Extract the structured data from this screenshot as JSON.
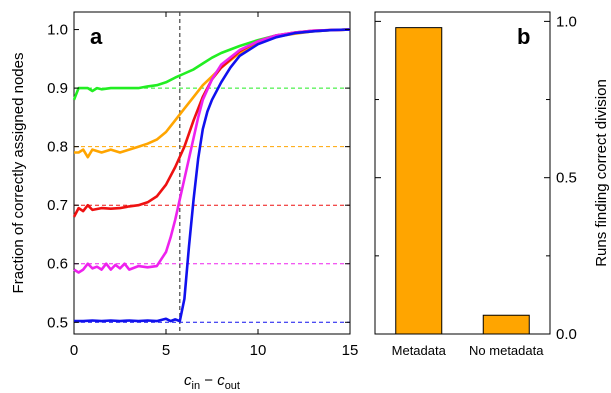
{
  "chart_data": [
    {
      "panel_label": "a",
      "type": "line",
      "xlabel": {
        "main": "c",
        "sub1": "in",
        "minus": " − ",
        "main2": "c",
        "sub2": "out"
      },
      "ylabel": "Fraction of correctly assigned nodes",
      "xlim": [
        0,
        15
      ],
      "ylim": [
        0.48,
        1.03
      ],
      "xticks": [
        "0",
        "5",
        "10",
        "15"
      ],
      "yticks": [
        "0.5",
        "0.6",
        "0.7",
        "0.8",
        "0.9",
        "1.0"
      ],
      "vertical_line_x": 5.75,
      "series": [
        {
          "color": "#22ee22",
          "baseline": 0.9,
          "x": [
            0,
            0.25,
            0.5,
            0.75,
            1,
            1.25,
            1.5,
            2,
            2.5,
            3,
            3.5,
            4,
            4.5,
            5,
            5.5,
            6,
            6.5,
            7,
            7.5,
            8,
            9,
            10,
            11,
            12,
            13,
            14,
            15
          ],
          "y": [
            0.88,
            0.9,
            0.9,
            0.9,
            0.895,
            0.9,
            0.898,
            0.9,
            0.9,
            0.9,
            0.9,
            0.903,
            0.905,
            0.91,
            0.918,
            0.925,
            0.932,
            0.942,
            0.952,
            0.96,
            0.972,
            0.982,
            0.99,
            0.994,
            0.997,
            0.999,
            1.0
          ]
        },
        {
          "color": "#ffa500",
          "baseline": 0.8,
          "x": [
            0,
            0.25,
            0.5,
            0.75,
            1,
            1.5,
            2,
            2.5,
            3,
            3.5,
            4,
            4.5,
            5,
            5.5,
            6,
            6.5,
            7,
            7.5,
            8,
            9,
            10,
            11,
            12,
            13,
            14,
            15
          ],
          "y": [
            0.79,
            0.79,
            0.795,
            0.782,
            0.795,
            0.79,
            0.795,
            0.79,
            0.795,
            0.8,
            0.805,
            0.812,
            0.825,
            0.845,
            0.865,
            0.885,
            0.905,
            0.92,
            0.935,
            0.96,
            0.976,
            0.988,
            0.993,
            0.997,
            0.999,
            1.0
          ]
        },
        {
          "color": "#ee1111",
          "baseline": 0.7,
          "x": [
            0,
            0.25,
            0.5,
            0.75,
            1,
            1.5,
            2,
            2.5,
            3,
            3.5,
            4,
            4.5,
            5,
            5.5,
            6,
            6.5,
            7,
            7.5,
            8,
            9,
            10,
            11,
            12,
            13,
            14,
            15
          ],
          "y": [
            0.68,
            0.695,
            0.69,
            0.7,
            0.692,
            0.695,
            0.694,
            0.695,
            0.698,
            0.7,
            0.705,
            0.715,
            0.735,
            0.765,
            0.8,
            0.845,
            0.885,
            0.915,
            0.935,
            0.963,
            0.98,
            0.99,
            0.995,
            0.998,
            0.999,
            1.0
          ]
        },
        {
          "color": "#ee22ee",
          "baseline": 0.6,
          "x": [
            0,
            0.25,
            0.5,
            0.75,
            1,
            1.25,
            1.5,
            1.75,
            2,
            2.25,
            2.5,
            2.75,
            3,
            3.5,
            4,
            4.5,
            5,
            5.25,
            5.5,
            5.75,
            6,
            6.25,
            6.5,
            6.75,
            7,
            7.5,
            8,
            9,
            10,
            11,
            12,
            13,
            14,
            15
          ],
          "y": [
            0.59,
            0.585,
            0.59,
            0.6,
            0.592,
            0.595,
            0.59,
            0.6,
            0.59,
            0.598,
            0.592,
            0.6,
            0.59,
            0.596,
            0.594,
            0.596,
            0.62,
            0.645,
            0.675,
            0.71,
            0.745,
            0.78,
            0.815,
            0.85,
            0.88,
            0.915,
            0.94,
            0.965,
            0.98,
            0.99,
            0.995,
            0.998,
            0.999,
            1.0
          ]
        },
        {
          "color": "#1111ee",
          "baseline": 0.5,
          "x": [
            0,
            0.5,
            1,
            1.5,
            2,
            2.5,
            3,
            3.5,
            4,
            4.5,
            5,
            5.25,
            5.5,
            5.75,
            6,
            6.25,
            6.5,
            6.75,
            7,
            7.25,
            7.5,
            8,
            8.5,
            9,
            10,
            11,
            12,
            13,
            14,
            15
          ],
          "y": [
            0.502,
            0.502,
            0.503,
            0.502,
            0.503,
            0.502,
            0.503,
            0.502,
            0.503,
            0.502,
            0.506,
            0.502,
            0.505,
            0.502,
            0.54,
            0.63,
            0.71,
            0.78,
            0.83,
            0.86,
            0.88,
            0.91,
            0.935,
            0.955,
            0.975,
            0.987,
            0.994,
            0.997,
            0.999,
            1.0
          ]
        }
      ]
    },
    {
      "panel_label": "b",
      "type": "bar",
      "categories": [
        "Metadata",
        "No metadata"
      ],
      "values": [
        0.98,
        0.06
      ],
      "bar_color": "#ffa500",
      "ylabel": "Runs finding correct division",
      "ylim": [
        0,
        1.03
      ],
      "yticks": [
        "0.0",
        "0.5",
        "1.0"
      ]
    }
  ]
}
